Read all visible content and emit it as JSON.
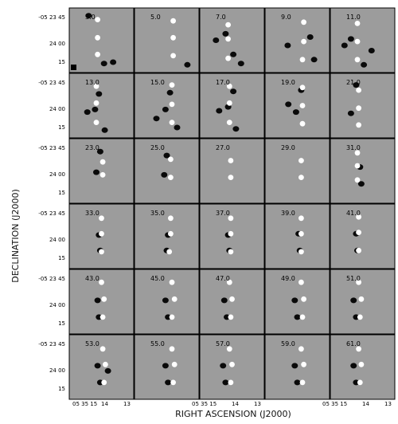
{
  "chart_data": {
    "type": "channel-map",
    "xlabel": "RIGHT ASCENSION (J2000)",
    "ylabel": "DECLINATION (J2000)",
    "x_ticks": [
      "05 35 15",
      "14",
      "13"
    ],
    "y_ticks": [
      "-05 23 45",
      "24 00",
      "15"
    ],
    "rows": 6,
    "cols": 5,
    "panels": [
      {
        "label": "3.0",
        "white": [
          [
            0.44,
            0.18
          ],
          [
            0.44,
            0.46
          ],
          [
            0.44,
            0.72
          ]
        ],
        "black": [
          [
            0.3,
            0.12
          ],
          [
            0.54,
            0.86
          ],
          [
            0.68,
            0.84
          ]
        ]
      },
      {
        "label": "5.0",
        "white": [
          [
            0.6,
            0.2
          ],
          [
            0.6,
            0.46
          ],
          [
            0.6,
            0.74
          ]
        ],
        "black": [
          [
            0.82,
            0.88
          ]
        ]
      },
      {
        "label": "7.0",
        "white": [
          [
            0.44,
            0.26
          ],
          [
            0.44,
            0.48
          ],
          [
            0.44,
            0.78
          ]
        ],
        "black": [
          [
            0.25,
            0.5
          ],
          [
            0.4,
            0.4
          ],
          [
            0.52,
            0.72
          ],
          [
            0.64,
            0.86
          ]
        ]
      },
      {
        "label": "9.0",
        "white": [
          [
            0.6,
            0.22
          ],
          [
            0.6,
            0.52
          ],
          [
            0.58,
            0.8
          ]
        ],
        "black": [
          [
            0.35,
            0.58
          ],
          [
            0.7,
            0.45
          ],
          [
            0.76,
            0.8
          ]
        ]
      },
      {
        "label": "11.0",
        "white": [
          [
            0.42,
            0.24
          ],
          [
            0.42,
            0.52
          ],
          [
            0.42,
            0.8
          ]
        ],
        "black": [
          [
            0.22,
            0.58
          ],
          [
            0.32,
            0.48
          ],
          [
            0.52,
            0.88
          ],
          [
            0.64,
            0.66
          ]
        ]
      },
      {
        "label": "13.0",
        "white": [
          [
            0.42,
            0.2
          ],
          [
            0.42,
            0.46
          ],
          [
            0.42,
            0.76
          ]
        ],
        "black": [
          [
            0.28,
            0.6
          ],
          [
            0.46,
            0.32
          ],
          [
            0.4,
            0.56
          ],
          [
            0.55,
            0.88
          ]
        ]
      },
      {
        "label": "15.0",
        "white": [
          [
            0.58,
            0.18
          ],
          [
            0.58,
            0.48
          ],
          [
            0.58,
            0.76
          ]
        ],
        "black": [
          [
            0.34,
            0.7
          ],
          [
            0.55,
            0.3
          ],
          [
            0.48,
            0.56
          ],
          [
            0.66,
            0.84
          ]
        ]
      },
      {
        "label": "17.0",
        "white": [
          [
            0.46,
            0.2
          ],
          [
            0.46,
            0.46
          ],
          [
            0.46,
            0.76
          ]
        ],
        "black": [
          [
            0.3,
            0.58
          ],
          [
            0.52,
            0.28
          ],
          [
            0.44,
            0.52
          ],
          [
            0.56,
            0.86
          ]
        ]
      },
      {
        "label": "19.0",
        "white": [
          [
            0.58,
            0.22
          ],
          [
            0.58,
            0.5
          ],
          [
            0.58,
            0.78
          ]
        ],
        "black": [
          [
            0.36,
            0.48
          ],
          [
            0.56,
            0.26
          ],
          [
            0.48,
            0.6
          ]
        ]
      },
      {
        "label": "21.0",
        "white": [
          [
            0.44,
            0.26
          ],
          [
            0.44,
            0.54
          ],
          [
            0.44,
            0.8
          ]
        ],
        "black": [
          [
            0.4,
            0.18
          ],
          [
            0.32,
            0.62
          ]
        ]
      },
      {
        "label": "23.0",
        "white": [
          [
            0.52,
            0.36
          ],
          [
            0.52,
            0.56
          ]
        ],
        "black": [
          [
            0.48,
            0.2
          ],
          [
            0.42,
            0.52
          ]
        ]
      },
      {
        "label": "25.0",
        "white": [
          [
            0.56,
            0.32
          ],
          [
            0.56,
            0.6
          ]
        ],
        "black": [
          [
            0.5,
            0.26
          ],
          [
            0.46,
            0.56
          ]
        ]
      },
      {
        "label": "27.0",
        "white": [
          [
            0.48,
            0.34
          ],
          [
            0.48,
            0.6
          ]
        ],
        "black": []
      },
      {
        "label": "29.0",
        "white": [
          [
            0.56,
            0.34
          ],
          [
            0.56,
            0.6
          ]
        ],
        "black": []
      },
      {
        "label": "31.0",
        "white": [
          [
            0.42,
            0.22
          ],
          [
            0.42,
            0.42
          ],
          [
            0.42,
            0.64
          ]
        ],
        "black": [
          [
            0.46,
            0.44
          ],
          [
            0.48,
            0.7
          ]
        ]
      },
      {
        "label": "33.0",
        "white": [
          [
            0.5,
            0.22
          ],
          [
            0.5,
            0.46
          ],
          [
            0.5,
            0.74
          ]
        ],
        "black": [
          [
            0.46,
            0.48
          ],
          [
            0.48,
            0.72
          ]
        ]
      },
      {
        "label": "35.0",
        "white": [
          [
            0.56,
            0.22
          ],
          [
            0.56,
            0.46
          ],
          [
            0.54,
            0.74
          ]
        ],
        "black": [
          [
            0.52,
            0.48
          ],
          [
            0.5,
            0.72
          ]
        ]
      },
      {
        "label": "37.0",
        "white": [
          [
            0.48,
            0.22
          ],
          [
            0.48,
            0.46
          ],
          [
            0.48,
            0.74
          ]
        ],
        "black": [
          [
            0.44,
            0.48
          ],
          [
            0.46,
            0.72
          ]
        ]
      },
      {
        "label": "39.0",
        "white": [
          [
            0.56,
            0.22
          ],
          [
            0.56,
            0.46
          ],
          [
            0.56,
            0.74
          ]
        ],
        "black": [
          [
            0.52,
            0.46
          ],
          [
            0.54,
            0.72
          ]
        ]
      },
      {
        "label": "41.0",
        "white": [
          [
            0.44,
            0.2
          ],
          [
            0.44,
            0.44
          ],
          [
            0.44,
            0.72
          ]
        ],
        "black": [
          [
            0.4,
            0.46
          ],
          [
            0.42,
            0.72
          ]
        ]
      },
      {
        "label": "43.0",
        "white": [
          [
            0.5,
            0.2
          ],
          [
            0.54,
            0.46
          ],
          [
            0.52,
            0.74
          ]
        ],
        "black": [
          [
            0.44,
            0.48
          ],
          [
            0.46,
            0.74
          ]
        ]
      },
      {
        "label": "45.0",
        "white": [
          [
            0.58,
            0.2
          ],
          [
            0.62,
            0.46
          ],
          [
            0.58,
            0.74
          ]
        ],
        "black": [
          [
            0.48,
            0.48
          ],
          [
            0.52,
            0.74
          ]
        ]
      },
      {
        "label": "47.0",
        "white": [
          [
            0.46,
            0.2
          ],
          [
            0.5,
            0.46
          ],
          [
            0.48,
            0.74
          ]
        ],
        "black": [
          [
            0.38,
            0.48
          ],
          [
            0.42,
            0.74
          ]
        ]
      },
      {
        "label": "49.0",
        "white": [
          [
            0.56,
            0.2
          ],
          [
            0.6,
            0.46
          ],
          [
            0.58,
            0.74
          ]
        ],
        "black": [
          [
            0.46,
            0.48
          ],
          [
            0.5,
            0.74
          ]
        ]
      },
      {
        "label": "51.0",
        "white": [
          [
            0.44,
            0.2
          ],
          [
            0.48,
            0.46
          ],
          [
            0.46,
            0.74
          ]
        ],
        "black": [
          [
            0.36,
            0.48
          ],
          [
            0.4,
            0.74
          ]
        ]
      },
      {
        "label": "53.0",
        "white": [
          [
            0.52,
            0.22
          ],
          [
            0.56,
            0.46
          ],
          [
            0.54,
            0.74
          ]
        ],
        "black": [
          [
            0.44,
            0.48
          ],
          [
            0.6,
            0.56
          ],
          [
            0.48,
            0.74
          ]
        ]
      },
      {
        "label": "55.0",
        "white": [
          [
            0.58,
            0.22
          ],
          [
            0.62,
            0.46
          ],
          [
            0.6,
            0.74
          ]
        ],
        "black": [
          [
            0.48,
            0.48
          ],
          [
            0.52,
            0.74
          ]
        ]
      },
      {
        "label": "57.0",
        "white": [
          [
            0.46,
            0.22
          ],
          [
            0.5,
            0.46
          ],
          [
            0.48,
            0.74
          ]
        ],
        "black": [
          [
            0.36,
            0.48
          ],
          [
            0.4,
            0.74
          ]
        ]
      },
      {
        "label": "59.0",
        "white": [
          [
            0.56,
            0.22
          ],
          [
            0.6,
            0.46
          ],
          [
            0.58,
            0.74
          ]
        ],
        "black": [
          [
            0.46,
            0.48
          ],
          [
            0.5,
            0.74
          ]
        ]
      },
      {
        "label": "61.0",
        "white": [
          [
            0.44,
            0.22
          ],
          [
            0.48,
            0.46
          ],
          [
            0.46,
            0.74
          ]
        ],
        "black": [
          [
            0.36,
            0.48
          ],
          [
            0.4,
            0.74
          ]
        ]
      }
    ]
  }
}
